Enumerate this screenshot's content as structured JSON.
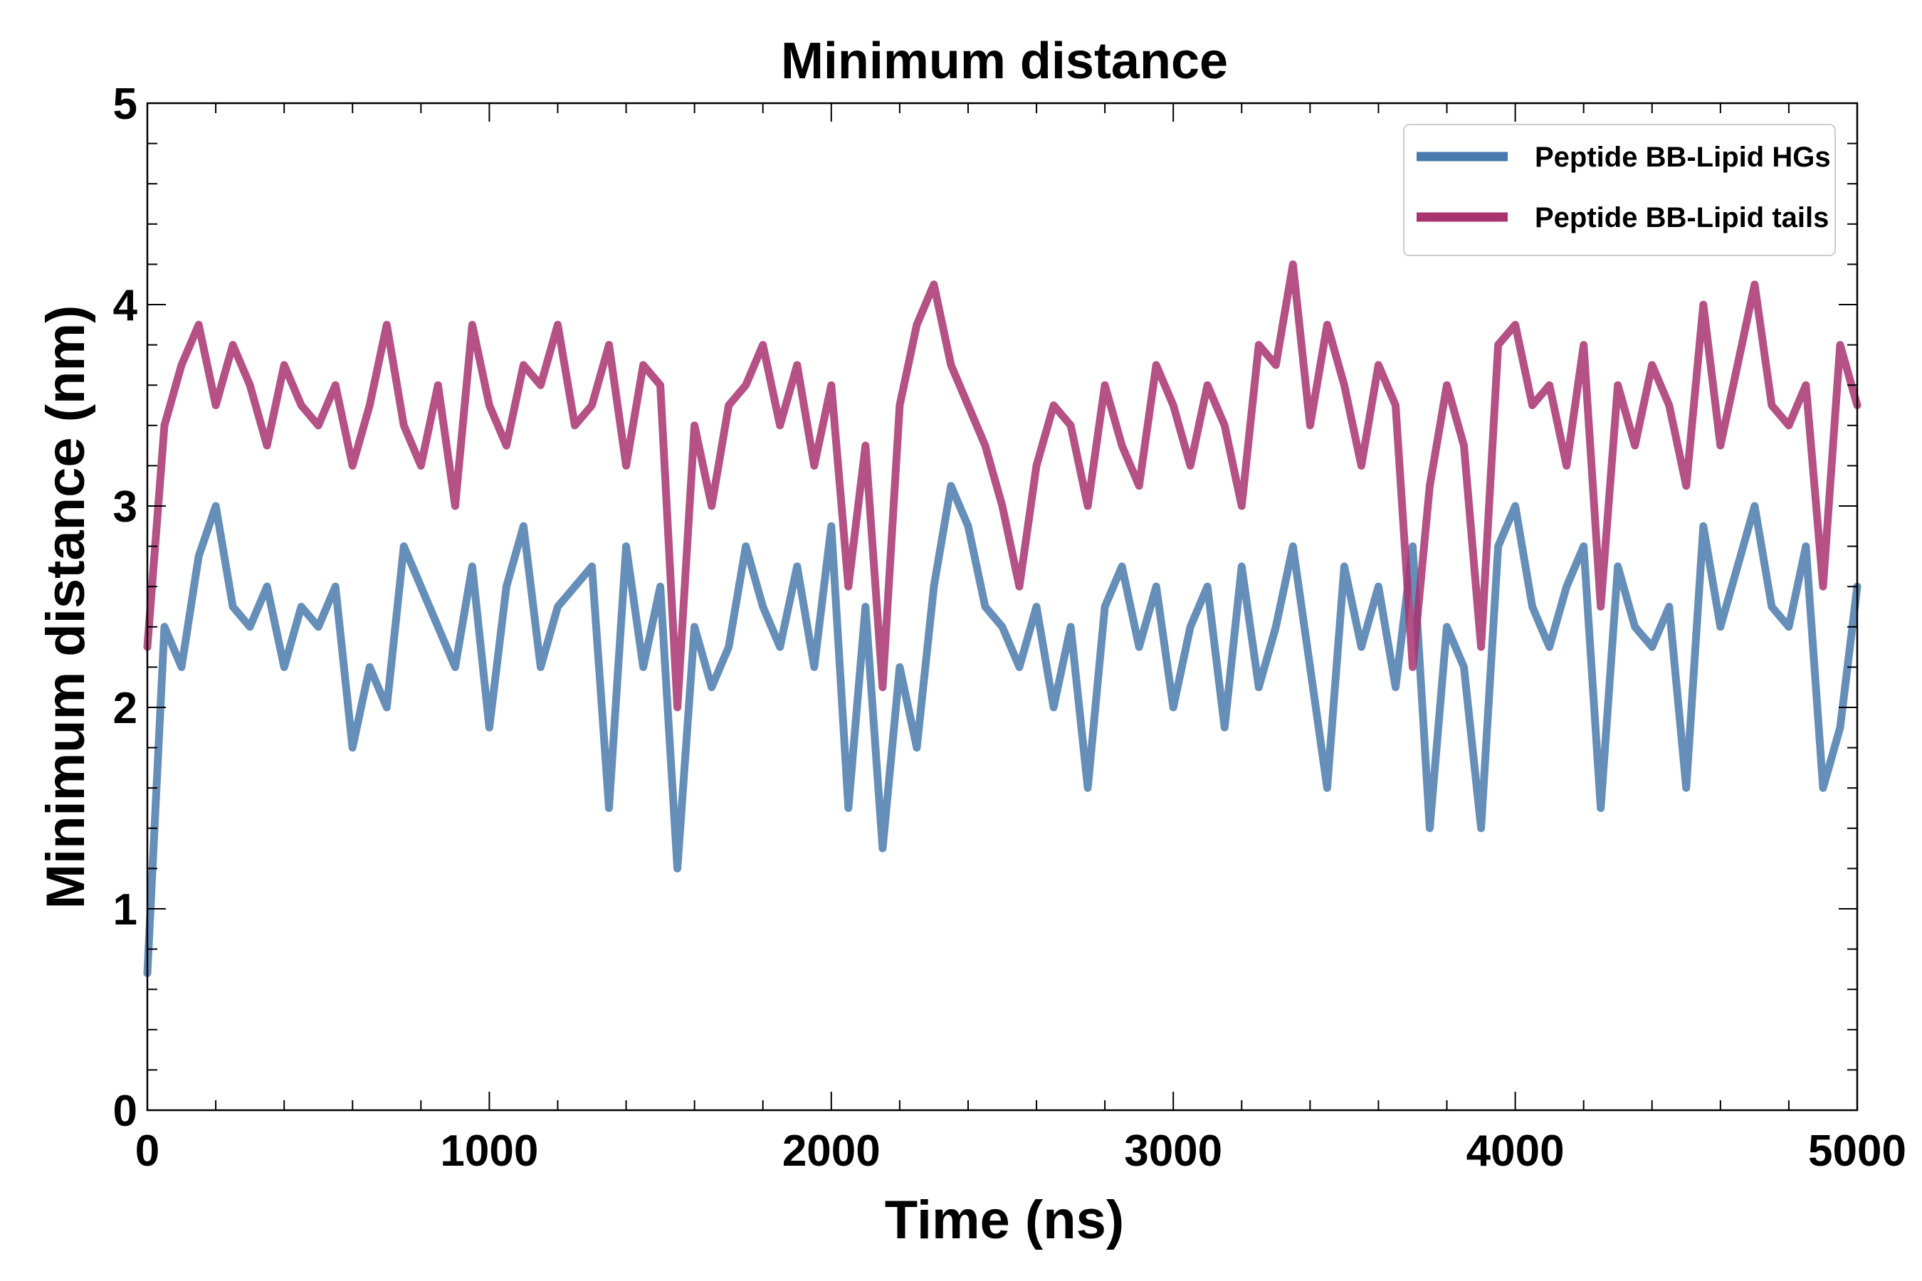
{
  "chart_data": {
    "type": "line",
    "title": "Minimum distance",
    "xlabel": "Time (ns)",
    "ylabel": "Minimum distance (nm)",
    "xlim": [
      0,
      5000
    ],
    "ylim": [
      0,
      5
    ],
    "x_ticks": [
      0,
      1000,
      2000,
      3000,
      4000,
      5000
    ],
    "x_tick_labels": [
      "0",
      "1000",
      "2000",
      "3000",
      "4000",
      "5000"
    ],
    "y_ticks": [
      0,
      1,
      2,
      3,
      4,
      5
    ],
    "y_tick_labels": [
      "0",
      "1",
      "2",
      "3",
      "4",
      "5"
    ],
    "grid": false,
    "legend_position": "top-right",
    "x": [
      0,
      50,
      100,
      150,
      200,
      250,
      300,
      350,
      400,
      450,
      500,
      550,
      600,
      650,
      700,
      750,
      800,
      850,
      900,
      950,
      1000,
      1050,
      1100,
      1150,
      1200,
      1250,
      1300,
      1350,
      1400,
      1450,
      1500,
      1550,
      1600,
      1650,
      1700,
      1750,
      1800,
      1850,
      1900,
      1950,
      2000,
      2050,
      2100,
      2150,
      2200,
      2250,
      2300,
      2350,
      2400,
      2450,
      2500,
      2550,
      2600,
      2650,
      2700,
      2750,
      2800,
      2850,
      2900,
      2950,
      3000,
      3050,
      3100,
      3150,
      3200,
      3250,
      3300,
      3350,
      3400,
      3450,
      3500,
      3550,
      3600,
      3650,
      3700,
      3750,
      3800,
      3850,
      3900,
      3950,
      4000,
      4050,
      4100,
      4150,
      4200,
      4250,
      4300,
      4350,
      4400,
      4450,
      4500,
      4550,
      4600,
      4650,
      4700,
      4750,
      4800,
      4850,
      4900,
      4950,
      5000
    ],
    "series": [
      {
        "name": "Peptide BB-Lipid HGs",
        "color": "#4a7aad",
        "values": [
          0.68,
          2.4,
          2.2,
          2.75,
          3.0,
          2.5,
          2.4,
          2.6,
          2.2,
          2.5,
          2.4,
          2.6,
          1.8,
          2.2,
          2.0,
          2.8,
          2.6,
          2.4,
          2.2,
          2.7,
          1.9,
          2.6,
          2.9,
          2.2,
          2.5,
          2.6,
          2.7,
          1.5,
          2.8,
          2.2,
          2.6,
          1.2,
          2.4,
          2.1,
          2.3,
          2.8,
          2.5,
          2.3,
          2.7,
          2.2,
          2.9,
          1.5,
          2.5,
          1.3,
          2.2,
          1.8,
          2.6,
          3.1,
          2.9,
          2.5,
          2.4,
          2.2,
          2.5,
          2.0,
          2.4,
          1.6,
          2.5,
          2.7,
          2.3,
          2.6,
          2.0,
          2.4,
          2.6,
          1.9,
          2.7,
          2.1,
          2.4,
          2.8,
          2.2,
          1.6,
          2.7,
          2.3,
          2.6,
          2.1,
          2.8,
          1.4,
          2.4,
          2.2,
          1.4,
          2.8,
          3.0,
          2.5,
          2.3,
          2.6,
          2.8,
          1.5,
          2.7,
          2.4,
          2.3,
          2.5,
          1.6,
          2.9,
          2.4,
          2.7,
          3.0,
          2.5,
          2.4,
          2.8,
          1.6,
          1.9,
          2.6
        ]
      },
      {
        "name": "Peptide BB-Lipid tails",
        "color": "#a8336e",
        "values": [
          2.3,
          3.4,
          3.7,
          3.9,
          3.5,
          3.8,
          3.6,
          3.3,
          3.7,
          3.5,
          3.4,
          3.6,
          3.2,
          3.5,
          3.9,
          3.4,
          3.2,
          3.6,
          3.0,
          3.9,
          3.5,
          3.3,
          3.7,
          3.6,
          3.9,
          3.4,
          3.5,
          3.8,
          3.2,
          3.7,
          3.6,
          2.0,
          3.4,
          3.0,
          3.5,
          3.6,
          3.8,
          3.4,
          3.7,
          3.2,
          3.6,
          2.6,
          3.3,
          2.1,
          3.5,
          3.9,
          4.1,
          3.7,
          3.5,
          3.3,
          3.0,
          2.6,
          3.2,
          3.5,
          3.4,
          3.0,
          3.6,
          3.3,
          3.1,
          3.7,
          3.5,
          3.2,
          3.6,
          3.4,
          3.0,
          3.8,
          3.7,
          4.2,
          3.4,
          3.9,
          3.6,
          3.2,
          3.7,
          3.5,
          2.2,
          3.1,
          3.6,
          3.3,
          2.3,
          3.8,
          3.9,
          3.5,
          3.6,
          3.2,
          3.8,
          2.5,
          3.6,
          3.3,
          3.7,
          3.5,
          3.1,
          4.0,
          3.3,
          3.7,
          4.1,
          3.5,
          3.4,
          3.6,
          2.6,
          3.8,
          3.5
        ]
      }
    ]
  }
}
